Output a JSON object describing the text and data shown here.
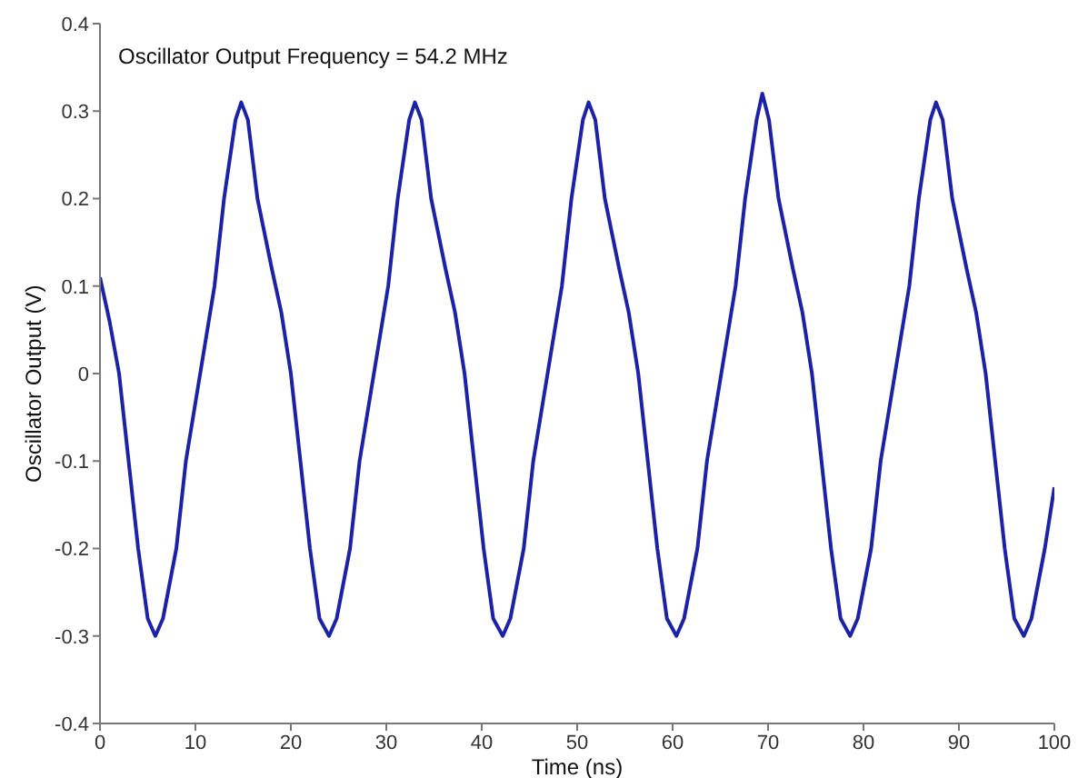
{
  "chart_data": {
    "type": "line",
    "xlabel": "Time (ns)",
    "ylabel": "Oscillator Output (V)",
    "annotations": [
      "Oscillator Output Frequency = 54.2 MHz"
    ],
    "xlim": [
      0,
      100
    ],
    "xticks": [
      0,
      10,
      20,
      30,
      40,
      50,
      60,
      70,
      80,
      90,
      100
    ],
    "ylim": [
      -0.4,
      0.4
    ],
    "yticks": [
      -0.4,
      -0.3,
      -0.2,
      -0.1,
      0,
      0.1,
      0.2,
      0.3,
      0.4
    ],
    "marker": "none",
    "line_style": "solid",
    "series": [
      {
        "color": "#1c22a8",
        "x": [
          0,
          1,
          2,
          3,
          4,
          5,
          5.8,
          6.6,
          8,
          9,
          10.5,
          12,
          13,
          14.2,
          14.8,
          15.5,
          16.5,
          18,
          19,
          20,
          21,
          22,
          23,
          24,
          24.8,
          26.2,
          27.2,
          28.7,
          30.2,
          31.2,
          32.4,
          33,
          33.7,
          34.7,
          36.2,
          37.2,
          38.2,
          39.2,
          40.2,
          41.2,
          42.2,
          43,
          44.4,
          45.4,
          46.9,
          48.4,
          49.4,
          50.6,
          51.2,
          51.9,
          52.9,
          54.4,
          55.4,
          56.4,
          57.4,
          58.4,
          59.4,
          60.4,
          61.2,
          62.6,
          63.6,
          65.1,
          66.6,
          67.6,
          68.8,
          69.4,
          70.1,
          71.1,
          72.6,
          73.6,
          74.6,
          75.6,
          76.6,
          77.6,
          78.6,
          79.4,
          80.8,
          81.8,
          83.3,
          84.8,
          85.8,
          87,
          87.6,
          88.3,
          89.3,
          90.8,
          91.8,
          92.8,
          93.8,
          94.8,
          95.8,
          96.8,
          97.6,
          99,
          100
        ],
        "values": [
          0.11,
          0.06,
          0,
          -0.1,
          -0.2,
          -0.28,
          -0.3,
          -0.28,
          -0.2,
          -0.1,
          0,
          0.1,
          0.2,
          0.29,
          0.31,
          0.29,
          0.2,
          0.12,
          0.07,
          0,
          -0.1,
          -0.2,
          -0.28,
          -0.3,
          -0.28,
          -0.2,
          -0.1,
          0,
          0.1,
          0.2,
          0.29,
          0.31,
          0.29,
          0.2,
          0.12,
          0.07,
          0,
          -0.1,
          -0.2,
          -0.28,
          -0.3,
          -0.28,
          -0.2,
          -0.1,
          0,
          0.1,
          0.2,
          0.29,
          0.31,
          0.29,
          0.2,
          0.12,
          0.07,
          0,
          -0.1,
          -0.2,
          -0.28,
          -0.3,
          -0.28,
          -0.2,
          -0.1,
          0,
          0.1,
          0.2,
          0.29,
          0.32,
          0.29,
          0.2,
          0.12,
          0.07,
          0,
          -0.1,
          -0.2,
          -0.28,
          -0.3,
          -0.28,
          -0.2,
          -0.1,
          0,
          0.1,
          0.2,
          0.29,
          0.31,
          0.29,
          0.2,
          0.12,
          0.07,
          0,
          -0.1,
          -0.2,
          -0.28,
          -0.3,
          -0.28,
          -0.2,
          -0.13
        ]
      }
    ]
  }
}
